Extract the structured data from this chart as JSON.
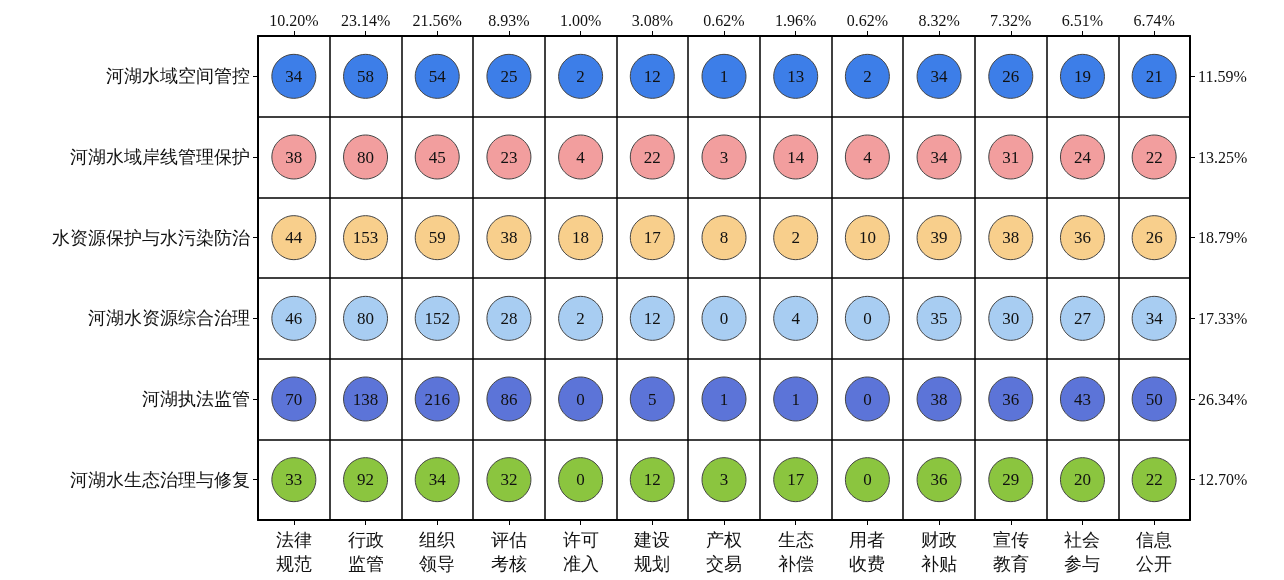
{
  "chart_data": {
    "type": "heatmap",
    "categories": [
      "法律规范",
      "行政监管",
      "组织领导",
      "评估考核",
      "许可准入",
      "建设规划",
      "产权交易",
      "生态补偿",
      "用者收费",
      "财政补贴",
      "宣传教育",
      "社会参与",
      "信息公开"
    ],
    "y_categories": [
      "河湖水域空间管控",
      "河湖水域岸线管理保护",
      "水资源保护与水污染防治",
      "河湖水资源综合治理",
      "河湖执法监管",
      "河湖水生态治理与修复"
    ],
    "y2_categories": [
      "11.59%",
      "13.25%",
      "18.79%",
      "17.33%",
      "26.34%",
      "12.70%"
    ],
    "annotations": [
      "10.20%",
      "23.14%",
      "21.56%",
      "8.93%",
      "1.00%",
      "3.08%",
      "0.62%",
      "1.96%",
      "0.62%",
      "8.32%",
      "7.32%",
      "6.51%",
      "6.74%"
    ],
    "cells": [
      [
        34,
        58,
        54,
        25,
        2,
        12,
        1,
        13,
        2,
        34,
        26,
        19,
        21
      ],
      [
        38,
        80,
        45,
        23,
        4,
        22,
        3,
        14,
        4,
        34,
        31,
        24,
        22
      ],
      [
        44,
        153,
        59,
        38,
        18,
        17,
        8,
        2,
        10,
        39,
        38,
        36,
        26
      ],
      [
        46,
        80,
        152,
        28,
        2,
        12,
        0,
        4,
        0,
        35,
        30,
        27,
        34
      ],
      [
        70,
        138,
        216,
        86,
        0,
        5,
        1,
        1,
        0,
        38,
        36,
        43,
        50
      ],
      [
        33,
        92,
        34,
        32,
        0,
        12,
        3,
        17,
        0,
        36,
        29,
        20,
        22
      ]
    ],
    "colors": [
      "#3d7ee8",
      "#f29e9e",
      "#f8cf8c",
      "#a8cdf2",
      "#5c74d8",
      "#8bc53f"
    ],
    "data_labels": true,
    "grid": true
  }
}
